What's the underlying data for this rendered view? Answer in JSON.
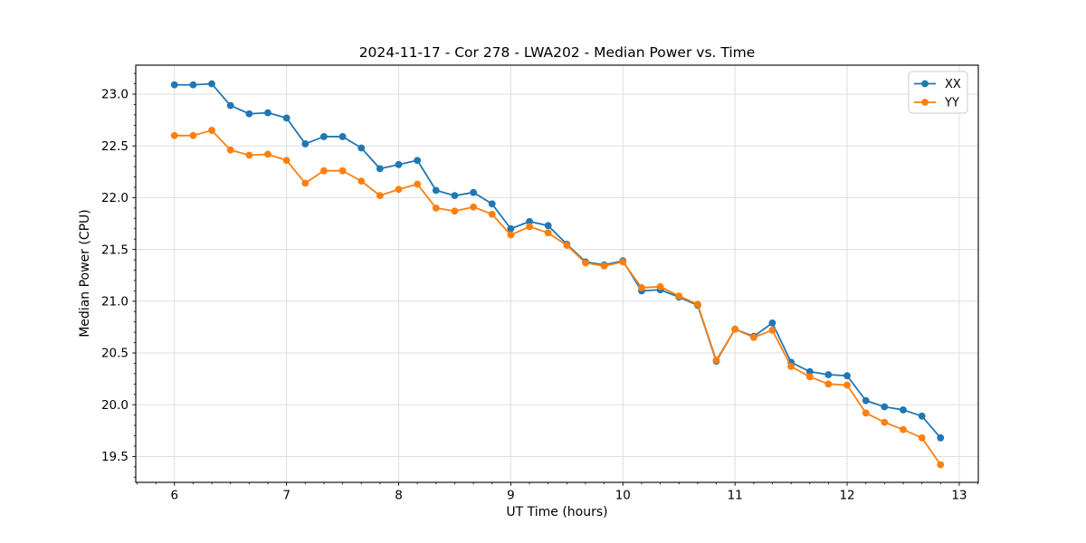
{
  "chart_data": {
    "type": "line",
    "title": "2024-11-17 - Cor 278 - LWA202 - Median Power vs. Time",
    "xlabel": "UT Time (hours)",
    "ylabel": "Median Power (CPU)",
    "xlim": [
      5.655,
      13.17
    ],
    "ylim": [
      19.25,
      23.28
    ],
    "x_ticks": [
      6,
      7,
      8,
      9,
      10,
      11,
      12,
      13
    ],
    "x_tick_labels": [
      "6",
      "7",
      "8",
      "9",
      "10",
      "11",
      "12",
      "13"
    ],
    "y_ticks": [
      19.5,
      20.0,
      20.5,
      21.0,
      21.5,
      22.0,
      22.5,
      23.0
    ],
    "y_tick_labels": [
      "19.5",
      "20.0",
      "20.5",
      "21.0",
      "21.5",
      "22.0",
      "22.5",
      "23.0"
    ],
    "x_minor_step": 0.1666667,
    "y_minor_step": 0.1,
    "grid": true,
    "grid_color": "#dcdcdc",
    "axis_color": "#000000",
    "background_color": "#ffffff",
    "legend": {
      "position": "upper right",
      "frame_color": "#cccccc",
      "entries": [
        "XX",
        "YY"
      ]
    },
    "x": [
      6.0,
      6.167,
      6.333,
      6.5,
      6.667,
      6.833,
      7.0,
      7.167,
      7.333,
      7.5,
      7.667,
      7.833,
      8.0,
      8.167,
      8.333,
      8.5,
      8.667,
      8.833,
      9.0,
      9.167,
      9.333,
      9.5,
      9.667,
      9.833,
      10.0,
      10.167,
      10.333,
      10.5,
      10.667,
      10.833,
      11.0,
      11.167,
      11.333,
      11.5,
      11.667,
      11.833,
      12.0,
      12.167,
      12.333,
      12.5,
      12.667,
      12.833
    ],
    "series": [
      {
        "name": "XX",
        "color": "#1f77b4",
        "values": [
          23.09,
          23.09,
          23.1,
          22.89,
          22.81,
          22.82,
          22.77,
          22.52,
          22.59,
          22.59,
          22.48,
          22.28,
          22.32,
          22.36,
          22.07,
          22.02,
          22.05,
          21.94,
          21.7,
          21.77,
          21.73,
          21.55,
          21.38,
          21.35,
          21.39,
          21.1,
          21.11,
          21.04,
          20.96,
          20.42,
          20.73,
          20.66,
          20.79,
          20.41,
          20.32,
          20.29,
          20.28,
          20.04,
          19.98,
          19.95,
          19.89,
          19.68
        ]
      },
      {
        "name": "YY",
        "color": "#ff7f0e",
        "values": [
          22.6,
          22.6,
          22.65,
          22.46,
          22.41,
          22.42,
          22.36,
          22.14,
          22.26,
          22.26,
          22.16,
          22.02,
          22.08,
          22.13,
          21.9,
          21.87,
          21.91,
          21.84,
          21.64,
          21.72,
          21.66,
          21.54,
          21.37,
          21.34,
          21.38,
          21.13,
          21.14,
          21.05,
          20.97,
          20.43,
          20.73,
          20.65,
          20.72,
          20.37,
          20.27,
          20.2,
          20.19,
          19.92,
          19.83,
          19.76,
          19.68,
          19.42
        ]
      }
    ]
  }
}
